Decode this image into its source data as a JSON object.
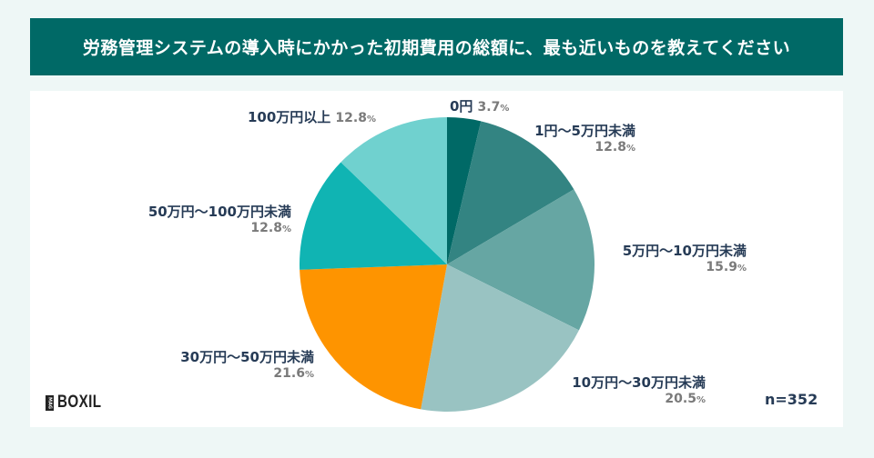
{
  "header": {
    "title": "労務管理システムの導入時にかかった初期費用の総額に、最も近いものを教えてください"
  },
  "footer": {
    "logo_mark": "MAG",
    "logo_text": "BOXIL",
    "sample_size": "n=352"
  },
  "chart_data": {
    "type": "pie",
    "title": "労務管理システムの導入時にかかった初期費用の総額に、最も近いものを教えてください",
    "start_angle": "12 o'clock",
    "direction": "clockwise",
    "n": 352,
    "categories": [
      "0円",
      "1円〜5万円未満",
      "5万円〜10万円未満",
      "10万円〜30万円未満",
      "30万円〜50万円未満",
      "50万円〜100万円未満",
      "100万円以上"
    ],
    "values": [
      3.7,
      12.8,
      15.9,
      20.5,
      21.6,
      12.8,
      12.8
    ],
    "colors": [
      "#006966",
      "#338482",
      "#66a6a3",
      "#99c3c2",
      "#fe9400",
      "#10b4b3",
      "#70d1cf"
    ],
    "unit": "%"
  },
  "labels": [
    {
      "cat": "0円",
      "pct": "3.7",
      "unit": "%"
    },
    {
      "cat": "1円〜5万円未満",
      "pct": "12.8",
      "unit": "%"
    },
    {
      "cat": "5万円〜10万円未満",
      "pct": "15.9",
      "unit": "%"
    },
    {
      "cat": "10万円〜30万円未満",
      "pct": "20.5",
      "unit": "%"
    },
    {
      "cat": "30万円〜50万円未満",
      "pct": "21.6",
      "unit": "%"
    },
    {
      "cat": "50万円〜100万円未満",
      "pct": "12.8",
      "unit": "%"
    },
    {
      "cat": "100万円以上",
      "pct": "12.8",
      "unit": "%"
    }
  ]
}
